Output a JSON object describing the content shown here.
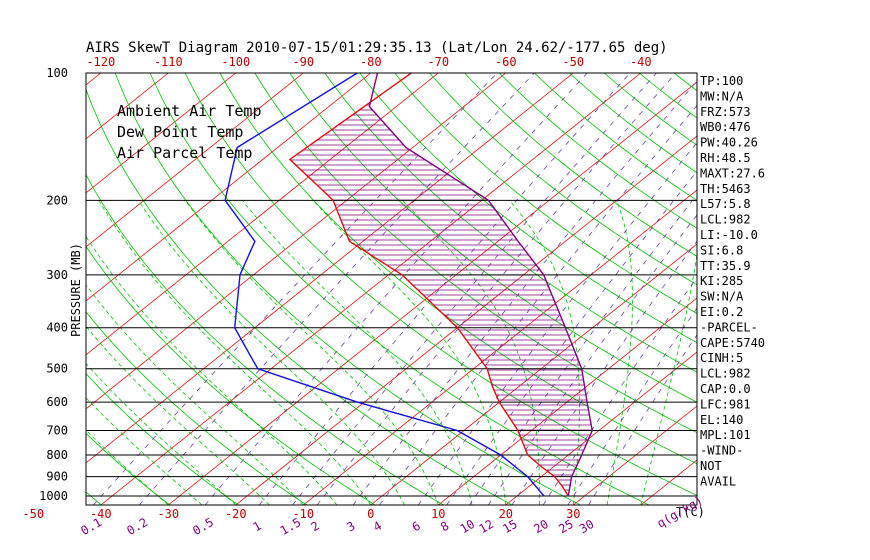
{
  "chart_data": {
    "type": "line",
    "title": "AIRS SkewT Diagram 2010-07-15/01:29:35.13 (Lat/Lon 24.62/-177.65 deg)",
    "ylabel": "PRESSURE (MB)",
    "xlabel": "T(C)",
    "mixing_ratio_label": "q(g/kg)",
    "pressure_levels": [
      100,
      200,
      300,
      400,
      500,
      600,
      700,
      800,
      900,
      1000
    ],
    "pressure_range": [
      100,
      1050
    ],
    "bottom_temp_ticks": [
      -50,
      -40,
      -30,
      -20,
      -10,
      0,
      10,
      20,
      30
    ],
    "top_temp_ticks": [
      -120,
      -110,
      -100,
      -90,
      -80,
      -70,
      -60,
      -50,
      -40
    ],
    "mixing_ratio_ticks": [
      "0.1",
      "0.2",
      "0.5",
      "1",
      "1.5",
      "2",
      "3",
      "4",
      "6",
      "8",
      "10",
      "12",
      "15",
      "20",
      "25",
      "30"
    ],
    "legend": [
      {
        "label": "Ambient Air Temp",
        "color": "#e01010"
      },
      {
        "label": "Dew Point Temp",
        "color": "#1010e0"
      },
      {
        "label": "Air Parcel Temp",
        "color": "#800080"
      }
    ],
    "series": [
      {
        "name": "Ambient Air Temp",
        "color": "#e01010",
        "points": [
          [
            100,
            -74
          ],
          [
            160,
            -76
          ],
          [
            200,
            -62
          ],
          [
            250,
            -52
          ],
          [
            300,
            -38
          ],
          [
            400,
            -20
          ],
          [
            500,
            -8
          ],
          [
            550,
            -4
          ],
          [
            600,
            0
          ],
          [
            700,
            8
          ],
          [
            800,
            14
          ],
          [
            850,
            18
          ],
          [
            900,
            22
          ],
          [
            950,
            25
          ],
          [
            1000,
            27.6
          ]
        ]
      },
      {
        "name": "Dew Point Temp",
        "color": "#1010e0",
        "points": [
          [
            100,
            -82
          ],
          [
            150,
            -86
          ],
          [
            200,
            -78
          ],
          [
            250,
            -66
          ],
          [
            300,
            -62
          ],
          [
            400,
            -53
          ],
          [
            500,
            -42
          ],
          [
            600,
            -21
          ],
          [
            700,
            -1
          ],
          [
            800,
            10
          ],
          [
            900,
            18
          ],
          [
            1000,
            24
          ]
        ]
      },
      {
        "name": "Air Parcel Temp",
        "color": "#800080",
        "points": [
          [
            100,
            -79
          ],
          [
            120,
            -74
          ],
          [
            150,
            -61
          ],
          [
            200,
            -39
          ],
          [
            250,
            -27
          ],
          [
            300,
            -17
          ],
          [
            400,
            -4
          ],
          [
            500,
            6
          ],
          [
            600,
            13
          ],
          [
            700,
            19
          ],
          [
            800,
            22
          ],
          [
            900,
            24.5
          ],
          [
            1000,
            27.6
          ]
        ]
      }
    ],
    "indices": [
      "TP:100",
      "MW:N/A",
      "FRZ:573",
      "WB0:476",
      "PW:40.26",
      "RH:48.5",
      "MAXT:27.6",
      "TH:5463",
      "L57:5.8",
      "LCL:982",
      "LI:-10.0",
      "SI:6.8",
      "TT:35.9",
      "KI:285",
      "SW:N/A",
      "EI:0.2",
      "-PARCEL-",
      "CAPE:5740",
      "CINH:5",
      "LCL:982",
      "CAP:0.0",
      "LFC:981",
      "EL:140",
      "MPL:101",
      "-WIND-",
      "NOT",
      "AVAIL"
    ]
  },
  "colors": {
    "isotherm": "#e01010",
    "dry_adiabat": "#00c000",
    "moist_adiabat": "#00c000",
    "mixing_ratio": "#6a3fa0",
    "dewpoint": "#1010e0",
    "parcel": "#800080",
    "temperature": "#e01010",
    "isobar": "#000000",
    "hatch": "#800080"
  }
}
